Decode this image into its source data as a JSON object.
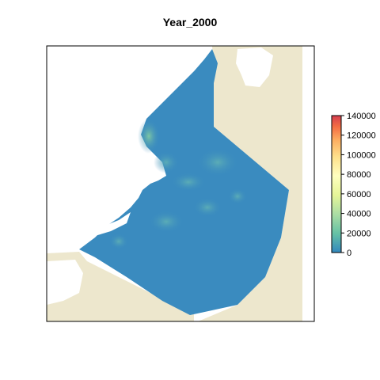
{
  "title": "Year_2000",
  "legend": {
    "ticks": [
      "140000",
      "120000",
      "100000",
      "80000",
      "60000",
      "40000",
      "20000",
      "0"
    ],
    "range": [
      0,
      140000
    ],
    "colors": [
      "#3288bd",
      "#66c2a5",
      "#abdda4",
      "#e6f598",
      "#ffffbf",
      "#fee08b",
      "#fdae61",
      "#f46d43",
      "#d53e4f"
    ]
  },
  "map": {
    "land_color": "#ede7cd",
    "water_color": "#ffffff",
    "background_density_color": "#3a8bbf"
  }
}
